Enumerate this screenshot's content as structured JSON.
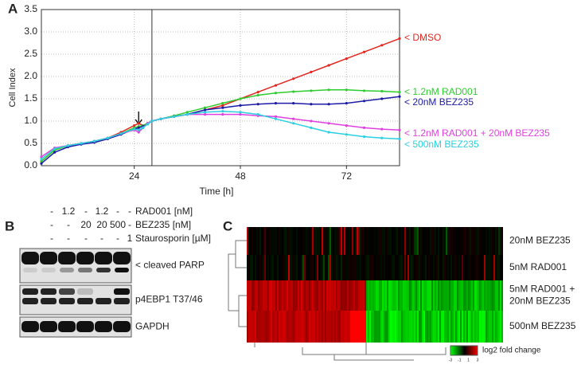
{
  "chart_data": {
    "type": "line",
    "panel_label": "A",
    "xlabel": "Time [h]",
    "ylabel": "Cell Index",
    "x": [
      3,
      6,
      9,
      12,
      15,
      18,
      21,
      24,
      25,
      26,
      27,
      28,
      30,
      33,
      36,
      40,
      44,
      48,
      52,
      56,
      60,
      64,
      68,
      72,
      76,
      80,
      84
    ],
    "xlim": [
      3,
      84
    ],
    "xticks": [
      24,
      48,
      72
    ],
    "ylim": [
      0,
      3.5
    ],
    "yticks": [
      {
        "value": 0,
        "label": "0.0"
      },
      0.5,
      {
        "value": 1,
        "label": "1.0"
      },
      1.5,
      {
        "value": 2,
        "label": "2.0"
      },
      2.5,
      {
        "value": 3,
        "label": "3.0"
      },
      3.5
    ],
    "grid": true,
    "treatment_time": 28,
    "arrow_time": 25,
    "series": [
      {
        "name": "< DMSO",
        "color": "#e3261f",
        "values": [
          0.1,
          0.35,
          0.45,
          0.5,
          0.55,
          0.62,
          0.75,
          0.9,
          0.95,
          0.9,
          0.95,
          1.0,
          1.05,
          1.1,
          1.15,
          1.25,
          1.35,
          1.5,
          1.65,
          1.8,
          1.95,
          2.1,
          2.25,
          2.4,
          2.55,
          2.7,
          2.85
        ]
      },
      {
        "name": "< 1.2nM RAD001",
        "color": "#2ecc2e",
        "values": [
          0.1,
          0.35,
          0.45,
          0.5,
          0.55,
          0.62,
          0.72,
          0.85,
          0.88,
          0.9,
          0.95,
          1.0,
          1.05,
          1.12,
          1.2,
          1.3,
          1.4,
          1.5,
          1.58,
          1.63,
          1.66,
          1.68,
          1.7,
          1.7,
          1.68,
          1.67,
          1.65
        ]
      },
      {
        "name": "< 20nM BEZ235",
        "color": "#1c1ca6",
        "values": [
          0.05,
          0.3,
          0.42,
          0.48,
          0.52,
          0.6,
          0.7,
          0.82,
          0.85,
          0.88,
          0.93,
          1.0,
          1.05,
          1.1,
          1.15,
          1.25,
          1.3,
          1.35,
          1.38,
          1.4,
          1.4,
          1.38,
          1.38,
          1.4,
          1.45,
          1.5,
          1.55
        ]
      },
      {
        "name": "< 1.2nM RAD001 + 20nM BEZ235",
        "color": "#e040e0",
        "values": [
          0.2,
          0.4,
          0.45,
          0.5,
          0.55,
          0.62,
          0.72,
          0.8,
          0.75,
          0.85,
          0.95,
          1.0,
          1.05,
          1.1,
          1.15,
          1.15,
          1.15,
          1.15,
          1.12,
          1.1,
          1.05,
          1.0,
          0.95,
          0.9,
          0.85,
          0.82,
          0.8
        ]
      },
      {
        "name": "< 500nM BEZ235",
        "color": "#2ad0e0",
        "values": [
          0.15,
          0.38,
          0.45,
          0.5,
          0.55,
          0.62,
          0.72,
          0.82,
          0.8,
          0.85,
          0.93,
          1.0,
          1.05,
          1.1,
          1.15,
          1.2,
          1.22,
          1.2,
          1.15,
          1.05,
          0.95,
          0.85,
          0.75,
          0.7,
          0.65,
          0.62,
          0.6
        ]
      }
    ]
  },
  "western_blot": {
    "panel_label": "B",
    "treatments": [
      {
        "name": "RAD001 [nM]",
        "lanes": [
          "-",
          "1.2",
          "-",
          "1.2",
          "-",
          "-"
        ]
      },
      {
        "name": "BEZ235 [nM]",
        "lanes": [
          "-",
          "-",
          "20",
          "20",
          "500",
          "-"
        ]
      },
      {
        "name": "Staurosporin [µM]",
        "lanes": [
          "-",
          "-",
          "-",
          "-",
          "-",
          "1"
        ]
      }
    ],
    "bands": [
      "< cleaved PARP",
      "p4EBP1 T37/46",
      "GAPDH"
    ]
  },
  "heatmap": {
    "panel_label": "C",
    "rows": [
      [
        "20nM BEZ235"
      ],
      [
        "5nM RAD001"
      ],
      [
        "5nM RAD001 +",
        "20nM BEZ235"
      ],
      [
        "500nM BEZ235"
      ]
    ],
    "colorbar": {
      "ticks": [
        -3,
        -1,
        1,
        3
      ],
      "label": "log2 fold change"
    }
  }
}
